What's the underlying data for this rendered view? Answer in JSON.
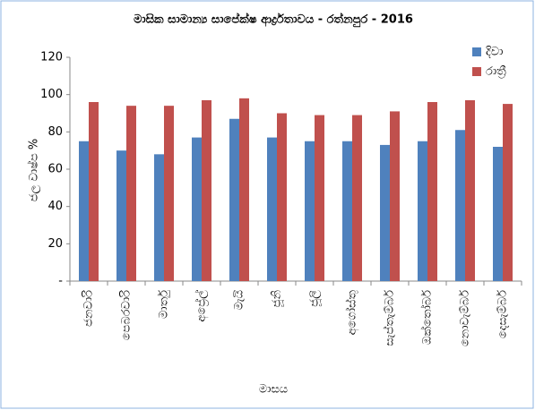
{
  "chart_data": {
    "type": "bar",
    "title": "මාසික සාමාන්‍ය සාපේක්ෂ ආර්ද්‍රතාවය - රත්නපුර - 2016",
    "y_label": "ජල වාෂ්ප %",
    "x_label": "මාසය",
    "categories": [
      "ජනවාරි",
      "පෙබරවාරි",
      "මාර්තු",
      "අප්‍රේල්",
      "මැයි",
      "ජූනි",
      "ජූලි",
      "අගෝස්තු",
      "සැප්තැම්බර්",
      "ඔක්තෝබර්",
      "නොවැම්බර්",
      "දෙසැම්බර්"
    ],
    "series": [
      {
        "name": "දිවා",
        "color": "#4f81bd",
        "values": [
          75,
          70,
          68,
          77,
          87,
          77,
          75,
          75,
          73,
          75,
          81,
          72
        ]
      },
      {
        "name": "රාත්‍රී",
        "color": "#c0504d",
        "values": [
          96,
          94,
          94,
          97,
          98,
          90,
          89,
          89,
          91,
          96,
          97,
          95
        ]
      }
    ],
    "ylim": [
      0,
      120
    ],
    "yticks": [
      {
        "value": 0,
        "label": "-"
      },
      20,
      40,
      60,
      80,
      100,
      120
    ],
    "legend": "upper right"
  }
}
